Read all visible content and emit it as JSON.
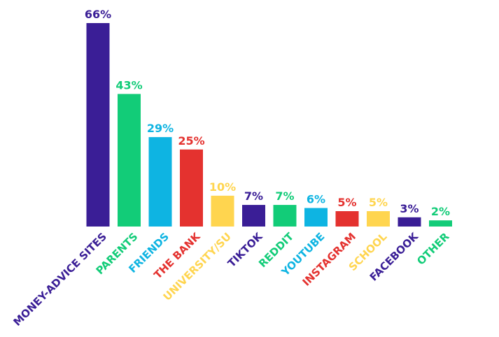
{
  "chart_data": {
    "type": "bar",
    "title": "",
    "xlabel": "",
    "ylabel": "",
    "ylim": [
      0,
      66
    ],
    "grid": false,
    "legend": "none",
    "value_suffix": "%",
    "categories": [
      "MONEY-ADVICE SITES",
      "PARENTS",
      "FRIENDS",
      "THE BANK",
      "UNIVERSITY/SU",
      "TIKTOK",
      "REDDIT",
      "YOUTUBE",
      "INSTAGRAM",
      "SCHOOL",
      "FACEBOOK",
      "OTHER"
    ],
    "values": [
      66,
      43,
      29,
      25,
      10,
      7,
      7,
      6,
      5,
      5,
      3,
      2
    ],
    "labels": [
      "66%",
      "43%",
      "29%",
      "25%",
      "10%",
      "7%",
      "7%",
      "6%",
      "5%",
      "5%",
      "3%",
      "2%"
    ],
    "colors": [
      "#3a1e96",
      "#12cc78",
      "#0eb4e2",
      "#e4322f",
      "#ffd54f",
      "#3a1e96",
      "#12cc78",
      "#0eb4e2",
      "#e4322f",
      "#ffd54f",
      "#3a1e96",
      "#12cc78"
    ]
  }
}
